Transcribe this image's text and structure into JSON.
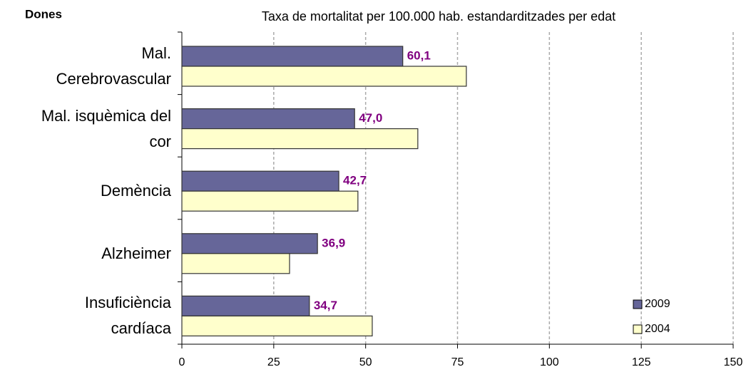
{
  "chart_data": {
    "type": "barh",
    "label": "Dones",
    "title": "Taxa de mortalitat per 100.000 hab. estandarditzades per edat",
    "categories": [
      "Mal.\nCerebrovascular",
      "Mal. isquèmica del\ncor",
      "Demència",
      "Alzheimer",
      "Insuficiència\ncardíaca"
    ],
    "series": [
      {
        "name": "2009",
        "color": "#666699",
        "values": [
          60.1,
          47.0,
          42.7,
          36.9,
          34.7
        ],
        "value_labels": [
          "60,1",
          "47,0",
          "42,7",
          "36,9",
          "34,7"
        ],
        "label_color": "#800080"
      },
      {
        "name": "2004",
        "color": "#ffffcc",
        "values": [
          77.4,
          64.2,
          47.9,
          29.3,
          51.8
        ]
      }
    ],
    "xlim": [
      0,
      150
    ],
    "xticks": [
      0,
      25,
      50,
      75,
      100,
      125,
      150
    ],
    "grid": true,
    "legend": "lower right"
  }
}
